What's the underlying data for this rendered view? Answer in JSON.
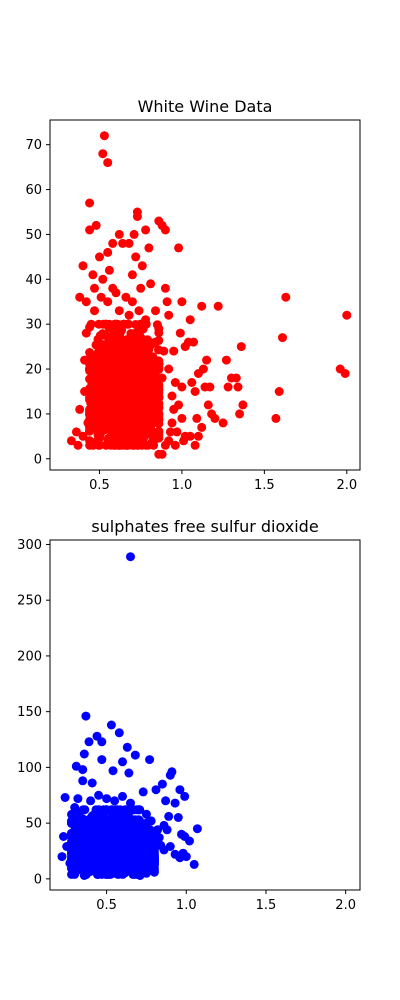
{
  "chart_data": [
    {
      "type": "scatter",
      "title": "White Wine Data",
      "xlabel": "",
      "ylabel": "",
      "color": "#ff0000",
      "xlim": [
        0.2,
        2.08
      ],
      "ylim": [
        -2.5,
        75.5
      ],
      "x_ticks": [
        0.5,
        1.0,
        1.5,
        2.0
      ],
      "x_tick_labels": [
        "0.5",
        "1.0",
        "1.5",
        "2.0"
      ],
      "y_ticks": [
        0,
        10,
        20,
        30,
        40,
        50,
        60,
        70
      ],
      "y_tick_labels": [
        "0",
        "10",
        "20",
        "30",
        "40",
        "50",
        "60",
        "70"
      ],
      "grid": false,
      "points": [
        [
          0.33,
          4
        ],
        [
          0.37,
          3
        ],
        [
          0.36,
          6
        ],
        [
          0.38,
          11
        ],
        [
          0.38,
          36
        ],
        [
          0.4,
          43
        ],
        [
          0.4,
          5
        ],
        [
          0.41,
          22
        ],
        [
          0.42,
          28
        ],
        [
          0.41,
          15
        ],
        [
          0.42,
          35
        ],
        [
          0.43,
          8
        ],
        [
          0.44,
          57
        ],
        [
          0.44,
          51
        ],
        [
          0.46,
          41
        ],
        [
          0.48,
          52
        ],
        [
          0.47,
          38
        ],
        [
          0.47,
          33
        ],
        [
          0.5,
          45
        ],
        [
          0.5,
          25
        ],
        [
          0.51,
          36
        ],
        [
          0.53,
          72
        ],
        [
          0.52,
          68
        ],
        [
          0.55,
          66
        ],
        [
          0.55,
          46
        ],
        [
          0.56,
          42
        ],
        [
          0.58,
          48
        ],
        [
          0.6,
          37
        ],
        [
          0.62,
          50
        ],
        [
          0.64,
          48
        ],
        [
          0.66,
          36
        ],
        [
          0.68,
          48
        ],
        [
          0.7,
          41
        ],
        [
          0.71,
          50
        ],
        [
          0.72,
          45
        ],
        [
          0.73,
          55
        ],
        [
          0.73,
          54
        ],
        [
          0.75,
          38
        ],
        [
          0.76,
          43
        ],
        [
          0.78,
          51
        ],
        [
          0.8,
          47
        ],
        [
          0.81,
          39
        ],
        [
          0.84,
          33
        ],
        [
          0.84,
          26
        ],
        [
          0.86,
          53
        ],
        [
          0.86,
          29
        ],
        [
          0.88,
          52
        ],
        [
          0.9,
          38
        ],
        [
          0.9,
          51
        ],
        [
          0.91,
          35
        ],
        [
          0.92,
          32
        ],
        [
          0.95,
          24
        ],
        [
          0.96,
          17
        ],
        [
          0.98,
          47
        ],
        [
          0.99,
          28
        ],
        [
          1.0,
          35
        ],
        [
          1.0,
          16
        ],
        [
          1.02,
          25
        ],
        [
          1.04,
          26
        ],
        [
          1.05,
          31
        ],
        [
          1.06,
          17
        ],
        [
          1.07,
          26
        ],
        [
          1.08,
          15
        ],
        [
          1.09,
          9
        ],
        [
          1.1,
          19
        ],
        [
          1.12,
          34
        ],
        [
          1.13,
          20
        ],
        [
          1.14,
          16
        ],
        [
          1.15,
          22
        ],
        [
          1.16,
          12
        ],
        [
          1.17,
          16
        ],
        [
          1.18,
          10
        ],
        [
          1.2,
          9
        ],
        [
          1.22,
          34
        ],
        [
          1.25,
          8
        ],
        [
          1.27,
          22
        ],
        [
          1.28,
          16
        ],
        [
          1.3,
          18
        ],
        [
          1.33,
          18
        ],
        [
          1.34,
          16
        ],
        [
          1.35,
          10
        ],
        [
          1.36,
          25
        ],
        [
          1.37,
          12
        ],
        [
          1.57,
          9
        ],
        [
          1.59,
          15
        ],
        [
          1.61,
          27
        ],
        [
          1.63,
          36
        ],
        [
          1.96,
          20
        ],
        [
          2.0,
          32
        ],
        [
          1.99,
          19
        ],
        [
          0.97,
          6
        ],
        [
          1.02,
          5
        ],
        [
          1.05,
          5
        ],
        [
          1.08,
          3
        ],
        [
          1.1,
          5
        ],
        [
          1.12,
          7
        ],
        [
          1.0,
          9
        ],
        [
          0.98,
          12
        ],
        [
          0.94,
          8
        ],
        [
          0.92,
          4
        ],
        [
          0.9,
          3
        ],
        [
          0.88,
          1
        ],
        [
          0.86,
          1
        ],
        [
          0.83,
          4
        ],
        [
          0.8,
          14
        ],
        [
          0.79,
          22
        ],
        [
          0.77,
          18
        ],
        [
          0.76,
          26
        ],
        [
          0.78,
          31
        ],
        [
          0.81,
          16
        ],
        [
          0.84,
          12
        ],
        [
          0.86,
          9
        ],
        [
          0.88,
          18
        ],
        [
          0.89,
          24
        ],
        [
          0.92,
          20
        ],
        [
          0.94,
          14
        ],
        [
          0.95,
          11
        ],
        [
          0.93,
          6
        ],
        [
          0.96,
          3
        ],
        [
          1.01,
          4
        ],
        [
          0.45,
          30
        ],
        [
          0.48,
          20
        ],
        [
          0.5,
          18
        ],
        [
          0.52,
          40
        ],
        [
          0.55,
          35
        ],
        [
          0.58,
          38
        ],
        [
          0.62,
          33
        ],
        [
          0.65,
          30
        ],
        [
          0.68,
          32
        ],
        [
          0.7,
          35
        ],
        [
          0.72,
          28
        ],
        [
          0.74,
          33
        ],
        [
          0.47,
          10
        ],
        [
          0.52,
          12
        ],
        [
          0.57,
          14
        ],
        [
          0.6,
          16
        ],
        [
          0.63,
          20
        ],
        [
          0.66,
          24
        ],
        [
          0.69,
          18
        ],
        [
          0.71,
          22
        ],
        [
          0.74,
          20
        ],
        [
          0.76,
          15
        ],
        [
          0.73,
          10
        ],
        [
          0.69,
          8
        ]
      ],
      "dense_region": {
        "x": [
          0.44,
          0.86
        ],
        "y": [
          3,
          30
        ]
      }
    },
    {
      "type": "scatter",
      "title": "sulphates free sulfur dioxide",
      "xlabel": "",
      "ylabel": "",
      "color": "#0000ff",
      "xlim": [
        0.145,
        2.09
      ],
      "ylim": [
        -10,
        304
      ],
      "x_ticks": [
        0.5,
        1.0,
        1.5,
        2.0
      ],
      "x_tick_labels": [
        "0.5",
        "1.0",
        "1.5",
        "2.0"
      ],
      "y_ticks": [
        0,
        50,
        100,
        150,
        200,
        250,
        300
      ],
      "y_tick_labels": [
        "0",
        "50",
        "100",
        "150",
        "200",
        "250",
        "300"
      ],
      "grid": false,
      "points": [
        [
          0.65,
          289
        ],
        [
          0.37,
          146
        ],
        [
          0.53,
          138
        ],
        [
          0.58,
          131
        ],
        [
          0.44,
          128
        ],
        [
          0.39,
          123
        ],
        [
          0.47,
          123
        ],
        [
          0.63,
          118
        ],
        [
          0.68,
          111
        ],
        [
          0.36,
          112
        ],
        [
          0.47,
          107
        ],
        [
          0.6,
          105
        ],
        [
          0.77,
          107
        ],
        [
          0.31,
          101
        ],
        [
          0.35,
          98
        ],
        [
          0.54,
          97
        ],
        [
          0.91,
          96
        ],
        [
          0.9,
          93
        ],
        [
          0.64,
          95
        ],
        [
          0.24,
          73
        ],
        [
          0.35,
          88
        ],
        [
          0.41,
          86
        ],
        [
          0.85,
          85
        ],
        [
          0.96,
          80
        ],
        [
          0.99,
          74
        ],
        [
          0.81,
          80
        ],
        [
          0.73,
          78
        ],
        [
          0.93,
          68
        ],
        [
          0.87,
          70
        ],
        [
          0.95,
          55
        ],
        [
          0.89,
          56
        ],
        [
          0.97,
          40
        ],
        [
          0.99,
          38
        ],
        [
          1.02,
          34
        ],
        [
          1.07,
          45
        ],
        [
          1.05,
          13
        ],
        [
          0.98,
          23
        ],
        [
          0.96,
          19
        ],
        [
          1.0,
          20
        ],
        [
          0.93,
          22
        ],
        [
          0.9,
          29
        ],
        [
          0.88,
          44
        ],
        [
          0.86,
          48
        ],
        [
          0.83,
          37
        ],
        [
          0.8,
          17
        ],
        [
          0.78,
          9
        ],
        [
          0.75,
          5
        ],
        [
          0.71,
          3
        ],
        [
          0.22,
          20
        ],
        [
          0.23,
          38
        ],
        [
          0.25,
          29
        ],
        [
          0.27,
          14
        ],
        [
          0.29,
          8
        ],
        [
          0.3,
          4
        ],
        [
          0.31,
          50
        ],
        [
          0.33,
          60
        ],
        [
          0.3,
          64
        ],
        [
          0.32,
          72
        ],
        [
          0.34,
          42
        ],
        [
          0.36,
          3
        ],
        [
          0.4,
          70
        ],
        [
          0.45,
          75
        ],
        [
          0.5,
          72
        ],
        [
          0.55,
          70
        ],
        [
          0.6,
          74
        ],
        [
          0.65,
          68
        ],
        [
          0.7,
          62
        ],
        [
          0.75,
          58
        ],
        [
          0.78,
          52
        ],
        [
          0.82,
          44
        ],
        [
          0.84,
          30
        ],
        [
          0.86,
          26
        ],
        [
          0.4,
          10
        ],
        [
          0.45,
          15
        ],
        [
          0.5,
          20
        ],
        [
          0.55,
          12
        ],
        [
          0.6,
          8
        ],
        [
          0.65,
          18
        ],
        [
          0.7,
          24
        ],
        [
          0.74,
          14
        ],
        [
          0.38,
          30
        ],
        [
          0.43,
          40
        ],
        [
          0.48,
          50
        ],
        [
          0.53,
          45
        ]
      ],
      "dense_region": {
        "x": [
          0.28,
          0.8
        ],
        "y": [
          4,
          62
        ]
      }
    }
  ]
}
